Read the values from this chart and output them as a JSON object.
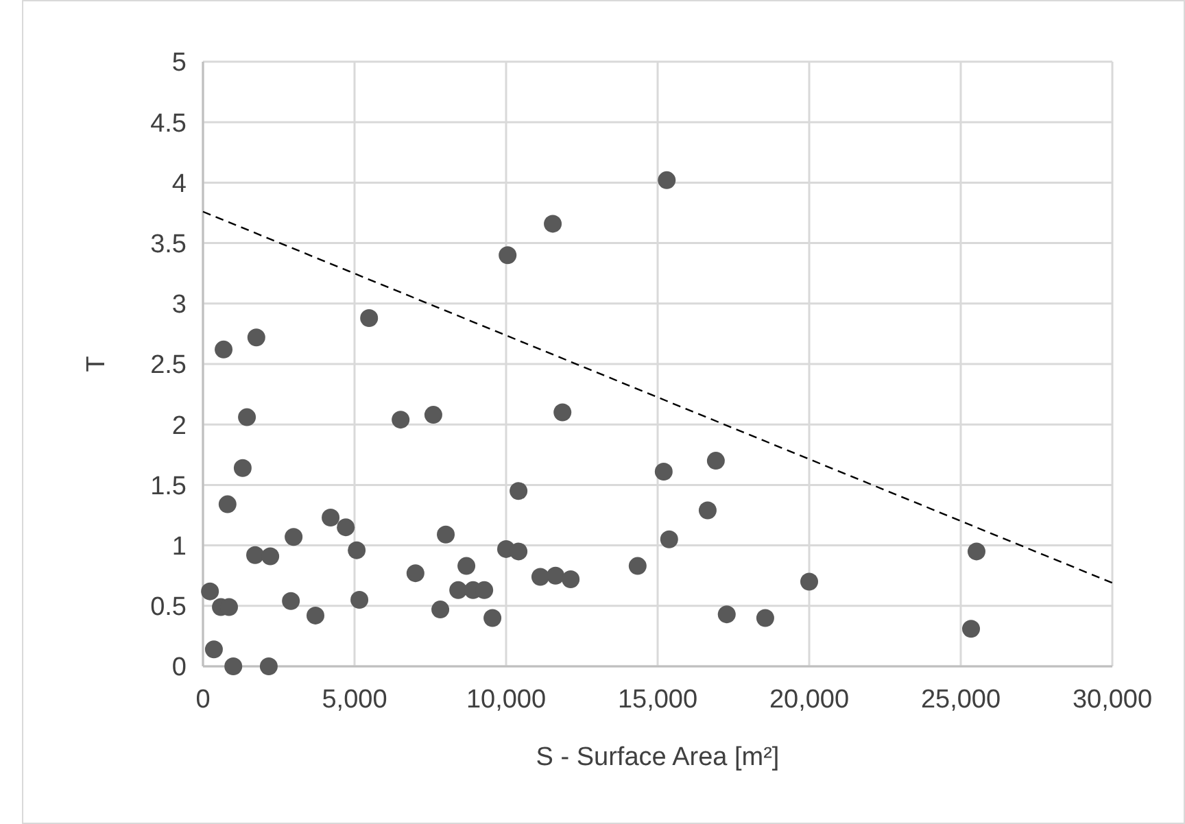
{
  "chart_data": {
    "type": "scatter",
    "xlabel": "S - Surface Area [m²]",
    "ylabel": "T",
    "xlim": [
      0,
      30000
    ],
    "xticks": [
      0,
      {
        "value": 5000,
        "label": "5,000"
      },
      {
        "value": 10000,
        "label": "10,000"
      },
      {
        "value": 15000,
        "label": "15,000"
      },
      {
        "value": 20000,
        "label": "20,000"
      },
      {
        "value": 25000,
        "label": "25,000"
      },
      {
        "value": 30000,
        "label": "30,000"
      }
    ],
    "ylim": [
      0,
      5
    ],
    "yticks": [
      0,
      0.5,
      1,
      1.5,
      2,
      2.5,
      3,
      3.5,
      4,
      4.5,
      5
    ],
    "grid": true,
    "marker": "circle",
    "series": [
      {
        "color": "#595959",
        "x": [
          230,
          360,
          590,
          680,
          810,
          860,
          1000,
          1310,
          1450,
          1720,
          1760,
          2170,
          2220,
          2900,
          2990,
          3710,
          4210,
          4710,
          5070,
          5160,
          5480,
          6520,
          7010,
          7600,
          7830,
          8010,
          8420,
          8690,
          8910,
          9280,
          9550,
          10050,
          10000,
          10410,
          10410,
          11130,
          11540,
          11630,
          11860,
          12130,
          14340,
          15200,
          15300,
          15380,
          16650,
          16920,
          17280,
          18550,
          20000,
          25340,
          25520
        ],
        "values": [
          0.62,
          0.14,
          0.49,
          2.62,
          1.34,
          0.49,
          0,
          1.64,
          2.06,
          0.92,
          2.72,
          0,
          0.91,
          0.54,
          1.07,
          0.42,
          1.23,
          1.15,
          0.96,
          0.55,
          2.88,
          2.04,
          0.77,
          2.08,
          0.47,
          1.09,
          0.63,
          0.83,
          0.63,
          0.63,
          0.4,
          3.4,
          0.97,
          0.95,
          1.45,
          0.74,
          3.66,
          0.75,
          2.1,
          0.72,
          0.83,
          1.61,
          4.02,
          1.05,
          1.29,
          1.7,
          0.43,
          0.4,
          0.7,
          0.31,
          0.95
        ]
      },
      {
        "type": "line",
        "color": "#000000",
        "line_style": "dashed",
        "marker": "none",
        "x": [
          0,
          30000
        ],
        "values": [
          3.76,
          0.69
        ]
      }
    ]
  }
}
